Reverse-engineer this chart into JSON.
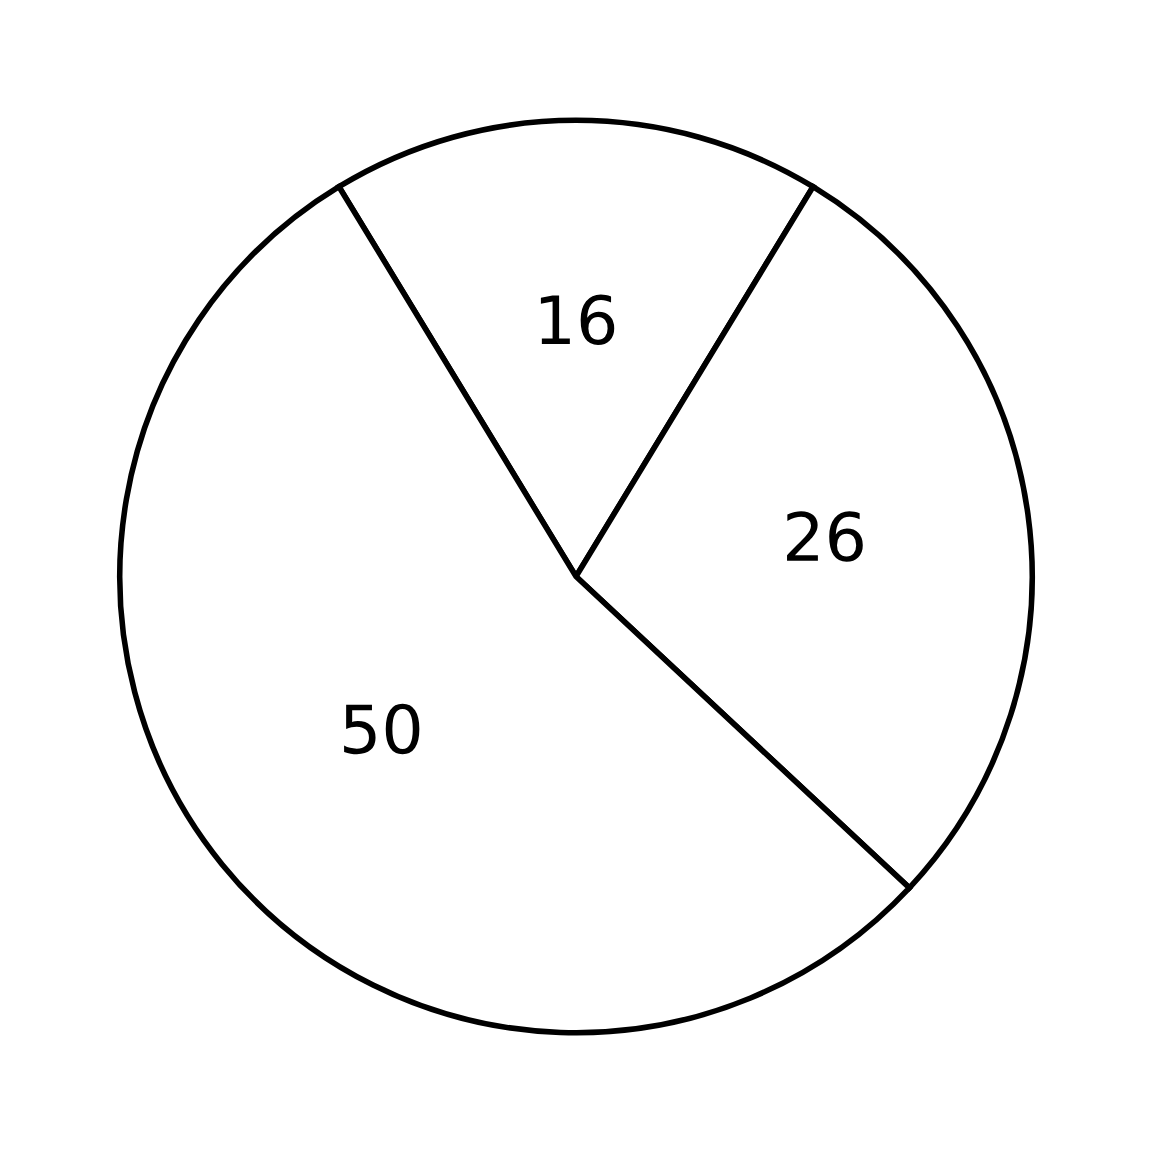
{
  "chart_data": {
    "type": "pie",
    "categories": [
      null,
      null,
      null
    ],
    "values": [
      16,
      26,
      50
    ],
    "colors": [
      "#ffffff",
      "#ffffff",
      "#ffffff"
    ],
    "data_labels": true
  }
}
